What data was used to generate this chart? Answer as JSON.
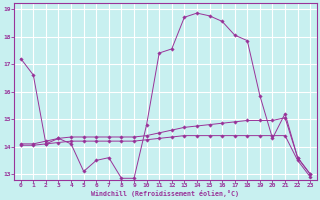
{
  "title": "",
  "xlabel": "Windchill (Refroidissement éolien,°C)",
  "background_color": "#c8f0f0",
  "grid_color": "#ffffff",
  "line_color": "#993399",
  "xlim": [
    -0.5,
    23.5
  ],
  "ylim": [
    12.8,
    19.2
  ],
  "yticks": [
    13,
    14,
    15,
    16,
    17,
    18,
    19
  ],
  "xticks": [
    0,
    1,
    2,
    3,
    4,
    5,
    6,
    7,
    8,
    9,
    10,
    11,
    12,
    13,
    14,
    15,
    16,
    17,
    18,
    19,
    20,
    21,
    22,
    23
  ],
  "series": [
    {
      "x": [
        0,
        1,
        2,
        3,
        4,
        5,
        6,
        7,
        8,
        9,
        10,
        11,
        12,
        13,
        14,
        15,
        16,
        17,
        18,
        19,
        20,
        21,
        22,
        23
      ],
      "y": [
        17.2,
        16.6,
        14.1,
        14.3,
        14.1,
        13.1,
        13.5,
        13.6,
        12.85,
        12.85,
        14.8,
        17.4,
        17.55,
        18.7,
        18.85,
        18.75,
        18.55,
        18.05,
        17.85,
        15.85,
        14.3,
        15.2,
        13.6,
        13.0
      ]
    },
    {
      "x": [
        0,
        1,
        2,
        3,
        4,
        5,
        6,
        7,
        8,
        9,
        10,
        11,
        12,
        13,
        14,
        15,
        16,
        17,
        18,
        19,
        20,
        21,
        22,
        23
      ],
      "y": [
        14.1,
        14.1,
        14.2,
        14.3,
        14.35,
        14.35,
        14.35,
        14.35,
        14.35,
        14.35,
        14.4,
        14.5,
        14.6,
        14.7,
        14.75,
        14.8,
        14.85,
        14.9,
        14.95,
        14.95,
        14.95,
        15.05,
        13.6,
        13.0
      ]
    },
    {
      "x": [
        0,
        1,
        2,
        3,
        4,
        5,
        6,
        7,
        8,
        9,
        10,
        11,
        12,
        13,
        14,
        15,
        16,
        17,
        18,
        19,
        20,
        21,
        22,
        23
      ],
      "y": [
        14.05,
        14.05,
        14.1,
        14.15,
        14.2,
        14.2,
        14.2,
        14.2,
        14.2,
        14.2,
        14.25,
        14.3,
        14.35,
        14.4,
        14.4,
        14.4,
        14.4,
        14.4,
        14.4,
        14.4,
        14.4,
        14.4,
        13.5,
        12.9
      ]
    }
  ]
}
